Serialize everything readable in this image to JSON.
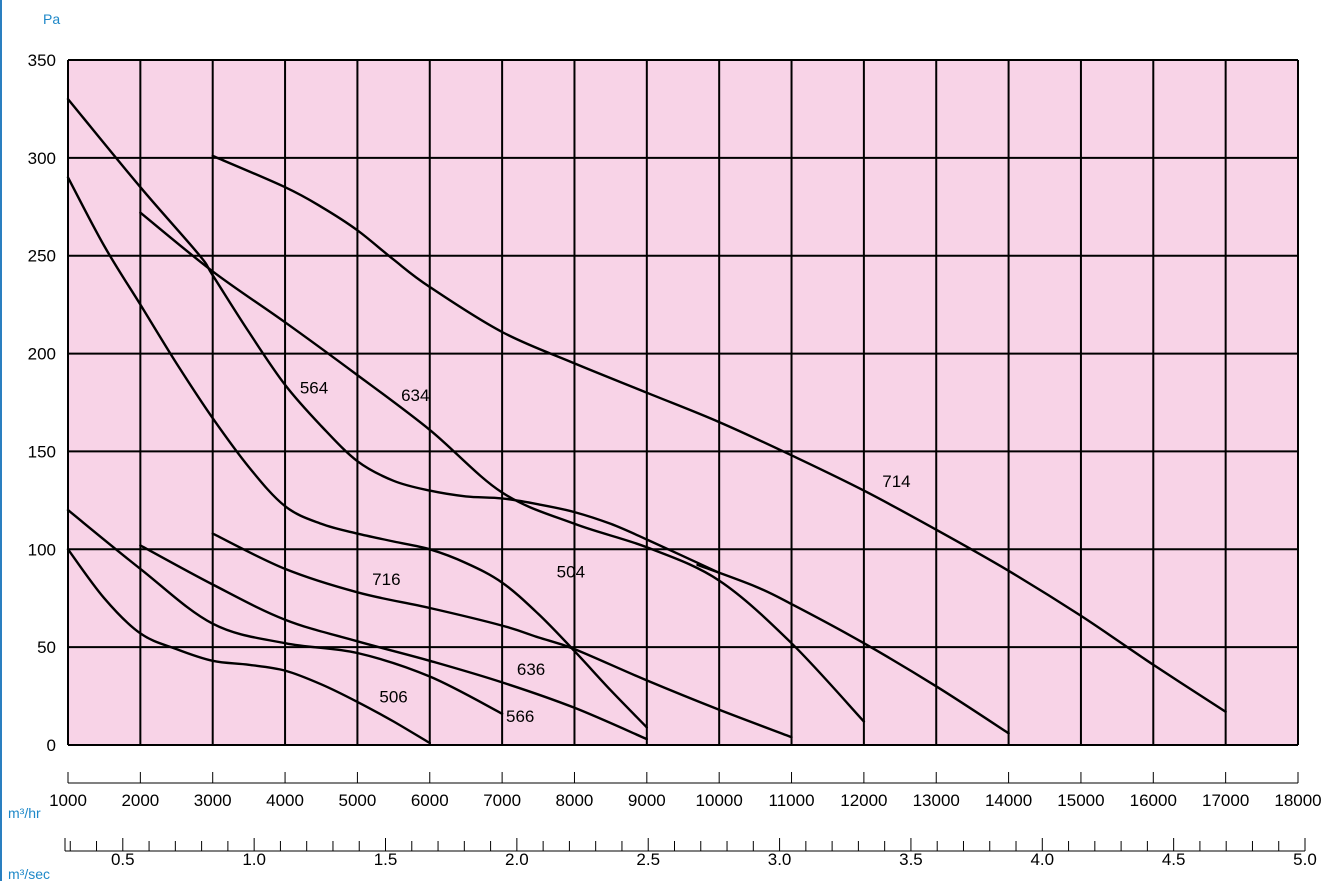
{
  "chart_data": {
    "type": "line",
    "title": "",
    "ylabel": "Pa",
    "xlabel": "m³/hr",
    "x2label": "m³/sec",
    "xlim": [
      1000,
      18000
    ],
    "ylim": [
      0,
      350
    ],
    "x_ticks": [
      1000,
      2000,
      3000,
      4000,
      5000,
      6000,
      7000,
      8000,
      9000,
      10000,
      11000,
      12000,
      13000,
      14000,
      15000,
      16000,
      17000,
      18000
    ],
    "y_ticks": [
      0,
      50,
      100,
      150,
      200,
      250,
      300,
      350
    ],
    "x2_ticks": [
      "0.5",
      "1.0",
      "1.5",
      "2.0",
      "2.5",
      "3.0",
      "3.5",
      "4.0",
      "4.5",
      "5.0"
    ],
    "x2_tick_values": [
      0.5,
      1.0,
      1.5,
      2.0,
      2.5,
      3.0,
      3.5,
      4.0,
      4.5,
      5.0
    ],
    "x2_minor_step": 0.1,
    "x2_range": [
      0.28,
      5.0
    ],
    "grid": true,
    "background_color": "#f8d3e7",
    "accent_color": "#1e88c8",
    "series": [
      {
        "name": "506",
        "label_at": [
          5500,
          24
        ],
        "x": [
          1000,
          1500,
          2000,
          2500,
          3000,
          3500,
          4000,
          4500,
          5000,
          5500,
          6000
        ],
        "y": [
          100,
          75,
          57,
          49,
          43,
          41,
          38,
          31,
          22,
          12,
          1
        ]
      },
      {
        "name": "566",
        "label_at": [
          7250,
          14
        ],
        "x": [
          1000,
          2000,
          3000,
          4000,
          5000,
          6000,
          7000
        ],
        "y": [
          120,
          90,
          62,
          52,
          47,
          35,
          16
        ]
      },
      {
        "name": "636",
        "label_at": [
          7400,
          38
        ],
        "x": [
          2000,
          3000,
          4000,
          5000,
          6000,
          7000,
          8000,
          9000
        ],
        "y": [
          102,
          82,
          64,
          53,
          43,
          32,
          19,
          3
        ]
      },
      {
        "name": "716",
        "label_at": [
          5400,
          84
        ],
        "x": [
          3000,
          4000,
          5000,
          6000,
          7000,
          7500,
          8000,
          9000,
          10000,
          11000
        ],
        "y": [
          108,
          90,
          78,
          70,
          61,
          55,
          49,
          33,
          18,
          4
        ]
      },
      {
        "name": "504",
        "label_at": [
          7950,
          88
        ],
        "x": [
          1000,
          1500,
          2000,
          2500,
          3000,
          3500,
          4000,
          4500,
          5000,
          5500,
          6000,
          6500,
          7000,
          7500,
          8000,
          8500,
          9000
        ],
        "y": [
          290,
          255,
          225,
          195,
          167,
          142,
          122,
          113,
          108,
          104,
          100,
          93,
          83,
          67,
          48,
          28,
          9
        ]
      },
      {
        "name": "564",
        "label_at": [
          4400,
          182
        ],
        "x": [
          1000,
          2000,
          2800,
          3000,
          3500,
          4000,
          4500,
          5000,
          5500,
          6000,
          6500,
          7000,
          7500,
          8000,
          8500,
          9000,
          10000
        ],
        "y": [
          330,
          285,
          251,
          240,
          211,
          184,
          163,
          145,
          135,
          130,
          127,
          126,
          123,
          119,
          113,
          105,
          88
        ]
      },
      {
        "name": "634",
        "label_at": [
          5800,
          178
        ],
        "x": [
          2000,
          3000,
          4000,
          5000,
          6000,
          7000,
          8000,
          9000,
          10000,
          11000,
          12000
        ],
        "y": [
          272,
          242,
          216,
          189,
          161,
          129,
          113,
          101,
          84,
          52,
          12
        ]
      },
      {
        "name": "714",
        "label_at": [
          12450,
          134
        ],
        "x": [
          3000,
          4000,
          4500,
          5000,
          5500,
          6000,
          7000,
          8000,
          9000,
          10000,
          11000,
          12000,
          13000,
          14000,
          15000,
          16000,
          17000
        ],
        "y": [
          301,
          285,
          275,
          263,
          248,
          234,
          211,
          195,
          180,
          165,
          148,
          130,
          110,
          89,
          66,
          41,
          17
        ]
      },
      {
        "name": "",
        "x": [
          9700,
          10500,
          11000,
          12000,
          13000,
          14000
        ],
        "y": [
          92,
          81,
          72,
          52,
          30,
          6
        ]
      }
    ]
  }
}
